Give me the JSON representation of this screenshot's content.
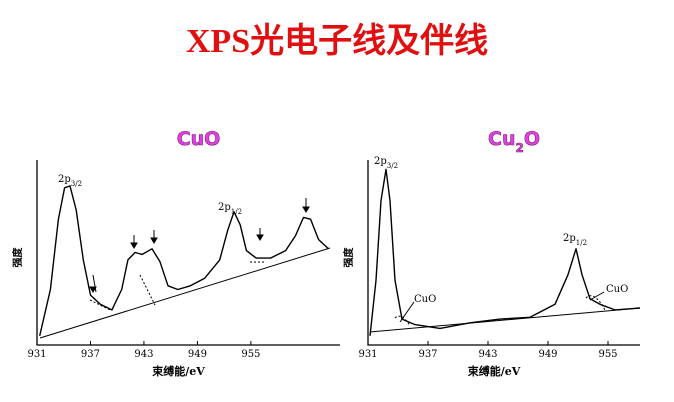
{
  "title": "XPS光电子线及伴线",
  "chart_data": [
    {
      "type": "line",
      "title": {
        "text": "CuO"
      },
      "x_label": "束缚能/eV",
      "y_label": "强度",
      "xlim": [
        931,
        965
      ],
      "ylim": [
        0,
        100
      ],
      "xticks": [
        931,
        937,
        943,
        949,
        955
      ],
      "color": "#000000",
      "annotations": [
        {
          "text": "2p",
          "sub": "3/2"
        },
        {
          "text": "2p",
          "sub": "1/2"
        }
      ],
      "series": [
        {
          "color": "#000000",
          "x": [
            931.3,
            932.5,
            933.4,
            934.1,
            934.7,
            935.4,
            936.2,
            937.0,
            938.1,
            939.4,
            940.5,
            941.2,
            942.0,
            942.8,
            943.9,
            944.8,
            945.7,
            946.8,
            948.2,
            949.8,
            951.5,
            952.4,
            953.1,
            953.8,
            954.5,
            955.6,
            957.2,
            958.9,
            960.0,
            960.9,
            961.7,
            962.6,
            963.7
          ],
          "values": [
            5,
            30,
            68,
            85,
            86,
            73,
            46,
            27,
            22,
            19,
            30,
            46,
            50,
            49,
            52,
            45,
            32,
            30,
            32,
            36,
            46,
            62,
            72,
            65,
            51,
            47,
            47,
            51,
            59,
            69,
            68,
            57,
            52
          ]
        }
      ]
    },
    {
      "type": "line",
      "title": {
        "text": "Cu",
        "sub": "2",
        "after": "O"
      },
      "x_label": "束缚能/eV",
      "y_label": "强度",
      "xlim": [
        931,
        958.2
      ],
      "ylim": [
        0,
        100
      ],
      "xticks": [
        931,
        937,
        943,
        949,
        955
      ],
      "annotations": [
        {
          "text": "2p",
          "sub": "3/2"
        },
        {
          "text": "CuO"
        },
        {
          "text": "2p",
          "sub": "1/2"
        },
        {
          "text": "CuO"
        }
      ],
      "series": [
        {
          "color": "#000000",
          "x": [
            931.2,
            931.8,
            932.3,
            932.8,
            933.2,
            933.7,
            934.4,
            935.7,
            938.2,
            941.2,
            944.2,
            947.2,
            949.7,
            951.0,
            951.8,
            952.4,
            953.2,
            954.2,
            955.7,
            958.2
          ],
          "values": [
            5,
            35,
            78,
            95,
            78,
            35,
            14,
            11,
            9,
            12,
            14,
            15,
            22,
            38,
            52,
            38,
            25,
            22,
            19,
            20
          ]
        }
      ]
    }
  ]
}
